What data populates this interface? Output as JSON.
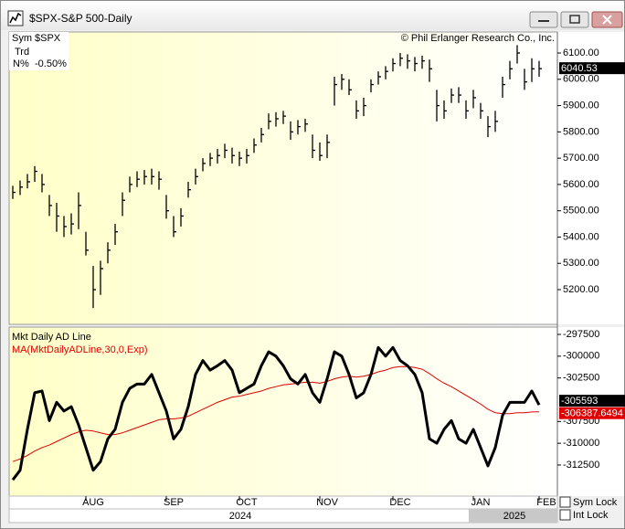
{
  "window": {
    "title": "$SPX-S&P 500-Daily"
  },
  "info": {
    "sym_label": "Sym",
    "sym": "$SPX",
    "trd_label": "Trd",
    "n_label": "N%",
    "n": "-0.50%"
  },
  "copyright": "© Phil Erlanger Research Co., Inc.",
  "years": [
    "2024",
    "2025"
  ],
  "controls": [
    "Sym Lock",
    "Int Lock"
  ],
  "chart_data": [
    {
      "type": "ohlc",
      "color": "#000000",
      "ylim": [
        5068,
        6180
      ],
      "yticks": [
        {
          "value": 5200,
          "label": "5200.00"
        },
        {
          "value": 5300,
          "label": "5300.00"
        },
        {
          "value": 5400,
          "label": "5400.00"
        },
        {
          "value": 5500,
          "label": "5500.00"
        },
        {
          "value": 5600,
          "label": "5600.00"
        },
        {
          "value": 5700,
          "label": "5700.00"
        },
        {
          "value": 5800,
          "label": "5800.00"
        },
        {
          "value": 5900,
          "label": "5900.00"
        },
        {
          "value": 6000,
          "label": "6000.00"
        },
        {
          "value": 6100,
          "label": "6100.00"
        }
      ],
      "grid": false,
      "high": [
        5595,
        5615,
        5640,
        5670,
        5640,
        5560,
        5530,
        5480,
        5490,
        5570,
        5420,
        5290,
        5310,
        5380,
        5450,
        5570,
        5630,
        5650,
        5655,
        5660,
        5650,
        5560,
        5480,
        5510,
        5610,
        5660,
        5700,
        5720,
        5735,
        5755,
        5740,
        5725,
        5735,
        5775,
        5815,
        5870,
        5875,
        5880,
        5840,
        5845,
        5850,
        5790,
        5760,
        5790,
        6010,
        6020,
        6000,
        5920,
        5930,
        6000,
        6030,
        6050,
        6080,
        6100,
        6095,
        6085,
        6090,
        6075,
        5960,
        5920,
        5965,
        5970,
        5920,
        5960,
        5910,
        5860,
        5880,
        6010,
        6070,
        6130,
        6040,
        6080,
        6070,
        null,
        null
      ],
      "low": [
        5545,
        5560,
        5585,
        5610,
        5570,
        5480,
        5420,
        5400,
        5410,
        5430,
        5330,
        5130,
        5180,
        5300,
        5370,
        5480,
        5570,
        5590,
        5600,
        5600,
        5580,
        5470,
        5400,
        5440,
        5550,
        5600,
        5650,
        5670,
        5680,
        5700,
        5680,
        5670,
        5680,
        5720,
        5760,
        5810,
        5820,
        5830,
        5770,
        5790,
        5800,
        5700,
        5690,
        5700,
        5900,
        5960,
        5940,
        5850,
        5860,
        5950,
        5980,
        6000,
        6030,
        6050,
        6040,
        6030,
        6040,
        5990,
        5840,
        5850,
        5910,
        5910,
        5850,
        5890,
        5850,
        5780,
        5800,
        5930,
        6000,
        6060,
        5960,
        5990,
        6010,
        null,
        null
      ],
      "close": [
        5570,
        5590,
        5610,
        5650,
        5600,
        5520,
        5480,
        5440,
        5450,
        5520,
        5350,
        5200,
        5280,
        5350,
        5420,
        5540,
        5600,
        5620,
        5630,
        5630,
        5620,
        5500,
        5420,
        5480,
        5580,
        5630,
        5680,
        5700,
        5710,
        5730,
        5710,
        5700,
        5710,
        5750,
        5790,
        5840,
        5850,
        5860,
        5800,
        5820,
        5830,
        5730,
        5710,
        5760,
        5980,
        6000,
        5960,
        5880,
        5900,
        5980,
        6010,
        6030,
        6060,
        6080,
        6070,
        6060,
        6070,
        6040,
        5900,
        5880,
        5940,
        5940,
        5880,
        5930,
        5880,
        5820,
        5840,
        5980,
        6040,
        6100,
        5990,
        6040,
        6040.53,
        null,
        null
      ]
    },
    {
      "type": "line",
      "categories": [
        null,
        null,
        null,
        null,
        null,
        null,
        null,
        null,
        null,
        null,
        null,
        "AUG",
        null,
        null,
        null,
        null,
        null,
        null,
        null,
        null,
        null,
        null,
        "SEP",
        null,
        null,
        null,
        null,
        null,
        null,
        null,
        null,
        null,
        "OCT",
        null,
        null,
        null,
        null,
        null,
        null,
        null,
        null,
        null,
        null,
        "NOV",
        null,
        null,
        null,
        null,
        null,
        null,
        null,
        null,
        null,
        "DEC",
        null,
        null,
        null,
        null,
        null,
        null,
        null,
        null,
        null,
        null,
        "JAN",
        null,
        null,
        null,
        null,
        null,
        null,
        null,
        null,
        "FEB",
        null
      ],
      "ylim": [
        -316070,
        -296660
      ],
      "yticks": [
        -297500,
        -300000,
        -302500,
        -307500,
        -310000,
        -312500
      ],
      "grid": false,
      "series": [
        {
          "name": "Mkt Daily AD Line",
          "color": "#000000",
          "values": [
            -314200,
            -313100,
            -308400,
            -304200,
            -304000,
            -307400,
            -305300,
            -306300,
            -305800,
            -307900,
            -310500,
            -313100,
            -312100,
            -309500,
            -308400,
            -305300,
            -303700,
            -303200,
            -303200,
            -302100,
            -304200,
            -306300,
            -309500,
            -308400,
            -305800,
            -302100,
            -300500,
            -301600,
            -301100,
            -300500,
            -301600,
            -304200,
            -303700,
            -303200,
            -301100,
            -299500,
            -300000,
            -301100,
            -302600,
            -303200,
            -302100,
            -304200,
            -305300,
            -302600,
            -299500,
            -300000,
            -302100,
            -304800,
            -304200,
            -302100,
            -299000,
            -300000,
            -299000,
            -300500,
            -301100,
            -302100,
            -304200,
            -309500,
            -310000,
            -308400,
            -307400,
            -309500,
            -310000,
            -308400,
            -310500,
            -312600,
            -310500,
            -306800,
            -305300,
            -305300,
            -305300,
            -304000,
            -305593,
            null,
            null
          ]
        },
        {
          "name": "MA(MktDailyADLine,30,0,Exp)",
          "color": "#e00000",
          "values": [
            -312100,
            -311800,
            -311400,
            -310900,
            -310500,
            -310200,
            -309800,
            -309400,
            -309000,
            -308700,
            -308500,
            -308600,
            -308800,
            -309000,
            -309000,
            -308800,
            -308500,
            -308200,
            -307900,
            -307600,
            -307300,
            -307200,
            -307200,
            -307100,
            -306900,
            -306500,
            -306100,
            -305700,
            -305300,
            -305000,
            -304700,
            -304600,
            -304400,
            -304200,
            -304000,
            -303700,
            -303500,
            -303300,
            -303200,
            -303100,
            -303000,
            -303000,
            -303100,
            -302900,
            -302600,
            -302400,
            -302300,
            -302400,
            -302300,
            -302100,
            -301800,
            -301600,
            -301300,
            -301200,
            -301200,
            -301300,
            -301500,
            -302000,
            -302600,
            -303100,
            -303500,
            -304000,
            -304500,
            -305000,
            -305500,
            -306100,
            -306500,
            -306600,
            -306600,
            -306500,
            -306500,
            -306400,
            -306387.6494,
            null,
            null
          ]
        }
      ]
    }
  ]
}
